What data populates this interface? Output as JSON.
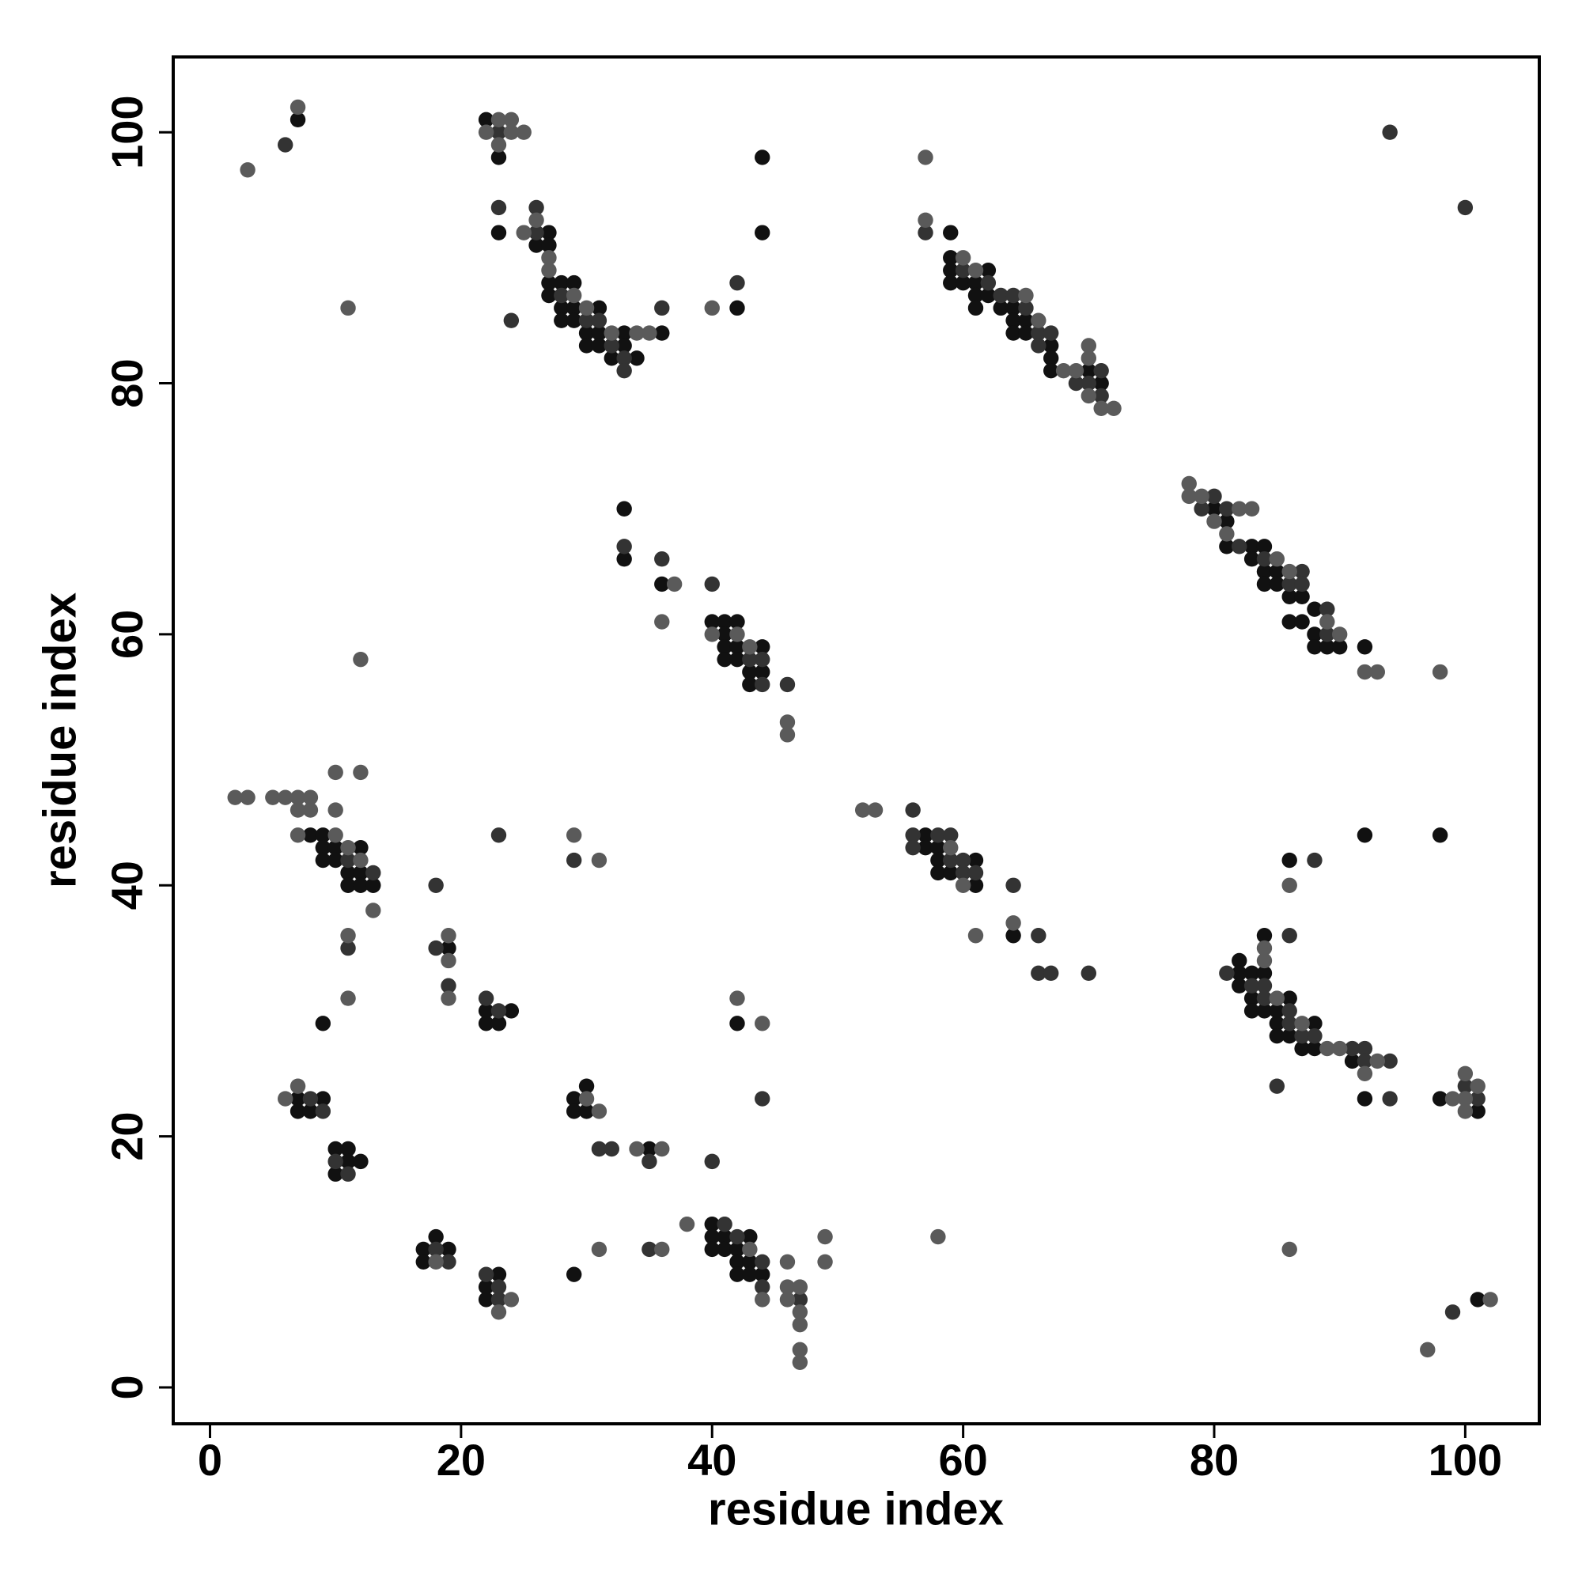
{
  "chart_data": {
    "type": "scatter",
    "x_label": "residue index",
    "y_label": "residue index",
    "xlim": [
      -2.93,
      105.9
    ],
    "ylim": [
      -2.9,
      106
    ],
    "xticks": [
      0,
      20,
      40,
      60,
      80,
      100
    ],
    "yticks": [
      0,
      20,
      40,
      60,
      80,
      100
    ],
    "grid": false,
    "series": [
      {
        "color": "#111111",
        "x": [
          7,
          22,
          23,
          23,
          27,
          26,
          27,
          27,
          28,
          29,
          27,
          28,
          29,
          31,
          28,
          29,
          30,
          31,
          33,
          36,
          30,
          31,
          33,
          32,
          34,
          42,
          44,
          44,
          59,
          59,
          59,
          62,
          59,
          60,
          61,
          61,
          62,
          61,
          63,
          64,
          64,
          65,
          64,
          65,
          67,
          67,
          67,
          70,
          71,
          80,
          81,
          81,
          83,
          84,
          83,
          84,
          85,
          84,
          85,
          86,
          87,
          88,
          86,
          87,
          88,
          88,
          89,
          90,
          92,
          33,
          33,
          36,
          40,
          41,
          42,
          41,
          41,
          42,
          44,
          41,
          42,
          43,
          44,
          43,
          8,
          9,
          9,
          10,
          12,
          9,
          10,
          11,
          12,
          11,
          12,
          13,
          9,
          19,
          22,
          24,
          22,
          23,
          7,
          9,
          7,
          8,
          10,
          11,
          11,
          12,
          10,
          29,
          30,
          29,
          30,
          35,
          42,
          17,
          18,
          19,
          17,
          23,
          22,
          22,
          29,
          40,
          40,
          41,
          43,
          40,
          41,
          42,
          42,
          43,
          42,
          43,
          44,
          57,
          57,
          58,
          58,
          61,
          58,
          59,
          61,
          64,
          92,
          98,
          86,
          84,
          82,
          82,
          83,
          84,
          82,
          83,
          86,
          83,
          84,
          85,
          85,
          88,
          85,
          86,
          87,
          88,
          91,
          92,
          98,
          101,
          101
        ],
        "y": [
          101,
          101,
          98,
          92,
          92,
          91,
          91,
          88,
          88,
          88,
          87,
          86,
          86,
          86,
          85,
          85,
          84,
          84,
          84,
          84,
          83,
          83,
          83,
          82,
          82,
          86,
          98,
          92,
          92,
          90,
          89,
          89,
          88,
          88,
          88,
          87,
          87,
          86,
          86,
          86,
          85,
          85,
          84,
          84,
          83,
          82,
          81,
          81,
          80,
          70,
          69,
          67,
          67,
          67,
          66,
          65,
          65,
          64,
          64,
          63,
          63,
          62,
          61,
          61,
          60,
          59,
          59,
          59,
          59,
          70,
          66,
          64,
          61,
          61,
          61,
          60,
          59,
          59,
          59,
          58,
          58,
          57,
          57,
          56,
          44,
          44,
          43,
          43,
          43,
          42,
          42,
          41,
          41,
          40,
          40,
          40,
          29,
          35,
          30,
          30,
          29,
          29,
          23,
          23,
          22,
          22,
          19,
          19,
          18,
          18,
          17,
          23,
          24,
          22,
          22,
          19,
          29,
          11,
          12,
          11,
          10,
          9,
          8,
          7,
          9,
          13,
          12,
          12,
          12,
          11,
          11,
          11,
          10,
          10,
          9,
          9,
          9,
          44,
          43,
          43,
          42,
          42,
          41,
          41,
          40,
          36,
          44,
          44,
          42,
          36,
          34,
          33,
          33,
          33,
          32,
          31,
          31,
          30,
          30,
          30,
          29,
          29,
          28,
          28,
          27,
          27,
          26,
          23,
          23,
          22,
          7
        ]
      },
      {
        "color": "#333333",
        "x": [
          6,
          23,
          23,
          26,
          26,
          28,
          30,
          31,
          32,
          33,
          33,
          36,
          42,
          24,
          57,
          60,
          62,
          63,
          64,
          65,
          66,
          67,
          66,
          71,
          69,
          70,
          71,
          94,
          100,
          80,
          79,
          81,
          82,
          84,
          87,
          86,
          87,
          89,
          89,
          33,
          36,
          40,
          43,
          44,
          44,
          46,
          11,
          13,
          11,
          18,
          18,
          19,
          22,
          23,
          23,
          29,
          8,
          9,
          10,
          11,
          31,
          32,
          35,
          40,
          44,
          18,
          19,
          22,
          23,
          23,
          35,
          41,
          42,
          44,
          44,
          47,
          56,
          56,
          58,
          59,
          56,
          59,
          60,
          60,
          61,
          64,
          66,
          66,
          67,
          70,
          88,
          86,
          81,
          83,
          84,
          84,
          86,
          86,
          87,
          88,
          91,
          92,
          92,
          94,
          85,
          94,
          100,
          101,
          99
        ],
        "y": [
          99,
          100,
          94,
          94,
          92,
          87,
          85,
          85,
          83,
          82,
          81,
          86,
          88,
          85,
          92,
          89,
          88,
          87,
          87,
          86,
          84,
          84,
          83,
          81,
          80,
          80,
          79,
          100,
          94,
          71,
          70,
          70,
          67,
          66,
          65,
          64,
          64,
          62,
          60,
          67,
          66,
          64,
          58,
          58,
          56,
          56,
          42,
          41,
          35,
          40,
          35,
          32,
          31,
          30,
          44,
          42,
          23,
          22,
          18,
          17,
          19,
          19,
          18,
          18,
          23,
          11,
          10,
          9,
          8,
          7,
          11,
          13,
          12,
          10,
          8,
          7,
          46,
          44,
          44,
          44,
          43,
          42,
          42,
          41,
          41,
          40,
          36,
          33,
          33,
          33,
          42,
          36,
          33,
          32,
          32,
          31,
          30,
          29,
          28,
          28,
          27,
          27,
          26,
          26,
          24,
          23,
          24,
          23,
          6
        ]
      },
      {
        "color": "#5a5a5a",
        "x": [
          3,
          7,
          11,
          23,
          24,
          22,
          24,
          25,
          23,
          25,
          26,
          27,
          27,
          29,
          30,
          32,
          34,
          35,
          40,
          57,
          57,
          60,
          61,
          65,
          66,
          70,
          70,
          68,
          69,
          70,
          71,
          72,
          78,
          78,
          79,
          82,
          83,
          80,
          81,
          85,
          86,
          89,
          90,
          92,
          93,
          98,
          37,
          36,
          40,
          42,
          43,
          46,
          46,
          12,
          2,
          3,
          5,
          6,
          7,
          8,
          7,
          8,
          10,
          12,
          10,
          7,
          10,
          11,
          12,
          13,
          11,
          11,
          19,
          19,
          19,
          29,
          31,
          6,
          7,
          30,
          31,
          34,
          36,
          42,
          44,
          18,
          24,
          23,
          31,
          36,
          38,
          43,
          44,
          46,
          46,
          47,
          46,
          47,
          47,
          47,
          47,
          49,
          49,
          52,
          53,
          59,
          60,
          64,
          61,
          58,
          86,
          84,
          84,
          85,
          87,
          89,
          90,
          93,
          92,
          99,
          100,
          100,
          101,
          100,
          86,
          97,
          102
        ],
        "y": [
          97,
          102,
          86,
          101,
          101,
          100,
          100,
          100,
          99,
          92,
          93,
          90,
          89,
          87,
          86,
          84,
          84,
          84,
          86,
          98,
          93,
          90,
          89,
          87,
          85,
          83,
          82,
          81,
          81,
          79,
          78,
          78,
          72,
          71,
          71,
          70,
          70,
          69,
          68,
          66,
          65,
          61,
          60,
          57,
          57,
          57,
          64,
          61,
          60,
          60,
          59,
          53,
          52,
          58,
          47,
          47,
          47,
          47,
          47,
          47,
          46,
          46,
          49,
          49,
          46,
          44,
          44,
          43,
          42,
          38,
          36,
          31,
          36,
          34,
          31,
          44,
          42,
          23,
          24,
          23,
          22,
          19,
          19,
          31,
          29,
          10,
          7,
          6,
          11,
          11,
          13,
          11,
          7,
          10,
          8,
          8,
          7,
          6,
          5,
          3,
          2,
          12,
          10,
          46,
          46,
          43,
          40,
          37,
          36,
          12,
          40,
          35,
          34,
          31,
          29,
          27,
          27,
          26,
          25,
          23,
          23,
          25,
          24,
          22,
          11,
          3,
          7
        ]
      }
    ]
  }
}
